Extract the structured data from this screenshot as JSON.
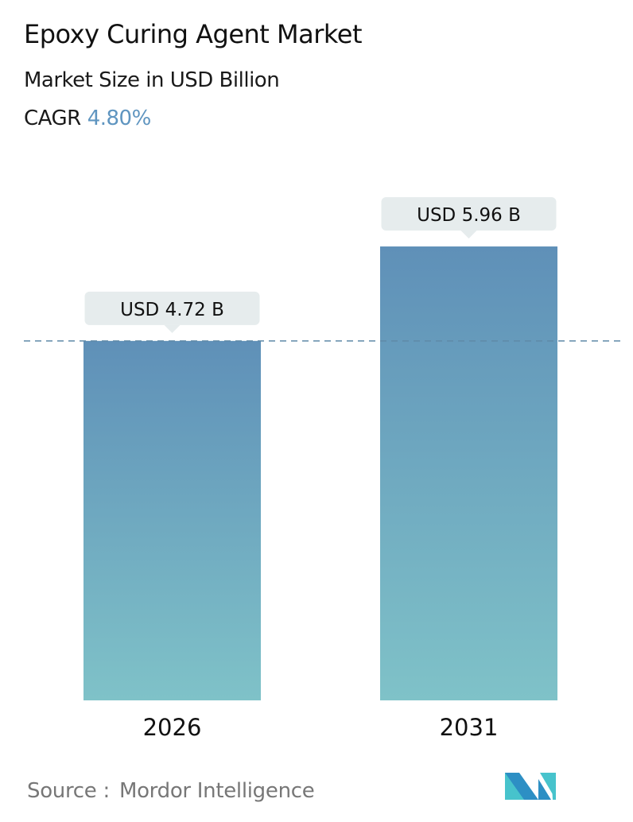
{
  "header": {
    "title": "Epoxy Curing Agent Market",
    "subtitle": "Market Size in USD Billion",
    "cagr_label": "CAGR",
    "cagr_value": "4.80%"
  },
  "colors": {
    "cagr": "#5f95c0",
    "bar_top": "#5f90b8",
    "bar_bottom": "#7fc2c8",
    "label_bg": "#e6eced",
    "dashed_line": "#5f8aa8"
  },
  "chart_data": {
    "type": "bar",
    "categories": [
      "2026",
      "2031"
    ],
    "values": [
      4.72,
      5.96
    ],
    "data_labels": [
      "USD 4.72 B",
      "USD 5.96 B"
    ],
    "ylim": [
      0,
      6.5
    ],
    "grid": false,
    "reference_line": 4.72
  },
  "footer": {
    "source_label": "Source :",
    "source_name": "Mordor Intelligence",
    "logo_text": "MI"
  }
}
